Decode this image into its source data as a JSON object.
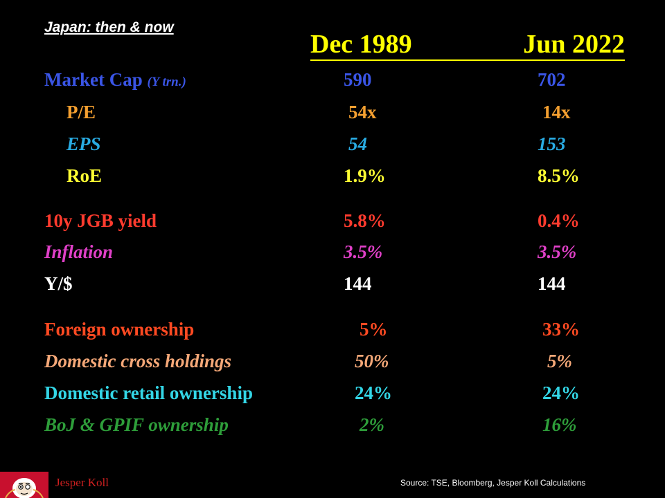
{
  "subtitle": "Japan: then & now",
  "columns": {
    "then": "Dec 1989",
    "now": "Jun 2022"
  },
  "rows": [
    {
      "label": "Market Cap",
      "unit": "(Y trn.)",
      "then": "590",
      "now": "702",
      "color": "#3a55e6"
    },
    {
      "label": "P/E",
      "then": "54x",
      "now": "14x",
      "color": "#f5a030"
    },
    {
      "label": "EPS",
      "then": "54",
      "now": "153",
      "color": "#29abe2"
    },
    {
      "label": "RoE",
      "then": "1.9%",
      "now": "8.5%",
      "color": "#ffff33"
    },
    {
      "label": "10y JGB yield",
      "then": "5.8%",
      "now": "0.4%",
      "color": "#ff3b2e"
    },
    {
      "label": "Inflation",
      "then": "3.5%",
      "now": "3.5%",
      "color": "#e040c8"
    },
    {
      "label": "Y/$",
      "then": "144",
      "now": "144",
      "color": "#ffffff"
    },
    {
      "label": "Foreign ownership",
      "then": "5%",
      "now": "33%",
      "color": "#ff4a22"
    },
    {
      "label": "Domestic cross holdings",
      "then": "50%",
      "now": "5%",
      "color": "#f5a878"
    },
    {
      "label": "Domestic retail ownership",
      "then": "24%",
      "now": "24%",
      "color": "#33d6e6"
    },
    {
      "label": "BoJ & GPIF ownership",
      "then": "2%",
      "now": "16%",
      "color": "#2e9e3a"
    }
  ],
  "footer": {
    "author": "Jesper Koll",
    "source": "Source:  TSE, Bloomberg, Jesper Koll Calculations",
    "logo_icon": "daruma-icon"
  }
}
